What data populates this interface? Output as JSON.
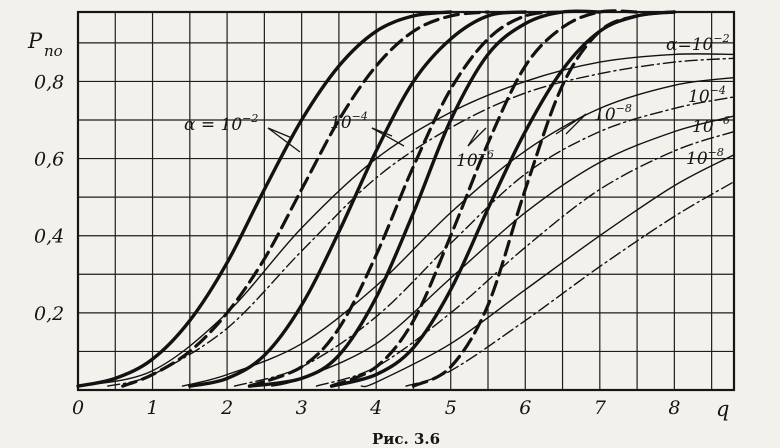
{
  "chart_data": {
    "type": "line",
    "title": "",
    "xlabel": "q",
    "ylabel": "P",
    "ylabel_sub": "по",
    "xlim": [
      0,
      8.8
    ],
    "ylim": [
      0,
      0.98
    ],
    "grid": true,
    "x_ticks": [
      0,
      1,
      2,
      3,
      4,
      5,
      6,
      7,
      8
    ],
    "x_tick_labels": [
      "0",
      "1",
      "2",
      "3",
      "4",
      "5",
      "6",
      "7",
      "8"
    ],
    "y_ticks": [
      0.2,
      0.4,
      0.6,
      0.8
    ],
    "y_tick_labels": [
      "0,2",
      "0,4",
      "0,6",
      "0,8"
    ],
    "caption": "Рис. 3.6",
    "annotations": [
      {
        "base": "α = 10",
        "exp": "−2"
      },
      {
        "base": "10",
        "exp": "−4"
      },
      {
        "base": "10",
        "exp": "−6"
      },
      {
        "base": "10",
        "exp": "−8"
      },
      {
        "base": "α=10",
        "exp": "−2"
      },
      {
        "base": "10",
        "exp": "−4"
      },
      {
        "base": "10",
        "exp": "−6"
      },
      {
        "base": "10",
        "exp": "−8"
      }
    ],
    "series": [
      {
        "style": "solid-thick",
        "x": [
          0,
          0.5,
          1,
          1.5,
          2,
          2.5,
          3,
          3.5,
          4,
          4.5,
          5
        ],
        "y": [
          0.01,
          0.03,
          0.08,
          0.18,
          0.33,
          0.52,
          0.7,
          0.84,
          0.93,
          0.97,
          0.98
        ]
      },
      {
        "style": "dashed-thick",
        "x": [
          0.6,
          1,
          1.5,
          2,
          2.5,
          3,
          3.5,
          4,
          4.5,
          5,
          5.5
        ],
        "y": [
          0.01,
          0.04,
          0.1,
          0.2,
          0.34,
          0.52,
          0.7,
          0.84,
          0.93,
          0.97,
          0.98
        ]
      },
      {
        "style": "solid-thick",
        "x": [
          1.5,
          2,
          2.5,
          3,
          3.5,
          4,
          4.5,
          5,
          5.5,
          6
        ],
        "y": [
          0.01,
          0.03,
          0.09,
          0.22,
          0.41,
          0.62,
          0.8,
          0.91,
          0.97,
          0.98
        ]
      },
      {
        "style": "dashed-thick",
        "x": [
          2.3,
          3,
          3.5,
          4,
          4.5,
          5,
          5.5,
          6,
          6.5
        ],
        "y": [
          0.01,
          0.06,
          0.16,
          0.35,
          0.58,
          0.78,
          0.91,
          0.97,
          0.98
        ]
      },
      {
        "style": "solid-thick",
        "x": [
          2.3,
          3,
          3.5,
          4,
          4.5,
          5,
          5.5,
          6,
          6.5,
          7
        ],
        "y": [
          0.01,
          0.03,
          0.09,
          0.24,
          0.46,
          0.7,
          0.87,
          0.95,
          0.98,
          0.98
        ]
      },
      {
        "style": "dashed-thick",
        "x": [
          3.4,
          4,
          4.5,
          5,
          5.5,
          6,
          6.5,
          7,
          7.5
        ],
        "y": [
          0.01,
          0.06,
          0.18,
          0.4,
          0.64,
          0.84,
          0.94,
          0.98,
          0.98
        ]
      },
      {
        "style": "solid-thick",
        "x": [
          3.4,
          4,
          4.5,
          5,
          5.5,
          6,
          6.5,
          7,
          7.5,
          8
        ],
        "y": [
          0.01,
          0.04,
          0.11,
          0.26,
          0.47,
          0.67,
          0.83,
          0.93,
          0.97,
          0.98
        ]
      },
      {
        "style": "dashed-thick",
        "x": [
          4.5,
          5,
          5.5,
          6,
          6.5,
          7,
          7.5,
          8
        ],
        "y": [
          0.01,
          0.06,
          0.22,
          0.52,
          0.79,
          0.93,
          0.97,
          0.98
        ]
      },
      {
        "style": "solid-thin",
        "x": [
          0,
          1,
          2,
          3,
          4,
          5,
          6,
          7,
          8,
          8.8
        ],
        "y": [
          0.01,
          0.05,
          0.2,
          0.42,
          0.6,
          0.72,
          0.8,
          0.85,
          0.87,
          0.87
        ]
      },
      {
        "style": "dashdot-thin",
        "x": [
          0.4,
          1,
          2,
          3,
          4,
          5,
          6,
          7,
          8,
          8.8
        ],
        "y": [
          0.01,
          0.04,
          0.16,
          0.36,
          0.55,
          0.68,
          0.77,
          0.82,
          0.85,
          0.86
        ]
      },
      {
        "style": "solid-thin",
        "x": [
          1.4,
          2,
          3,
          4,
          5,
          6,
          7,
          8,
          8.8
        ],
        "y": [
          0.01,
          0.04,
          0.12,
          0.27,
          0.46,
          0.62,
          0.73,
          0.79,
          0.81
        ]
      },
      {
        "style": "dashdot-thin",
        "x": [
          2.1,
          3,
          4,
          5,
          6,
          7,
          8,
          8.8
        ],
        "y": [
          0.01,
          0.06,
          0.19,
          0.38,
          0.56,
          0.67,
          0.73,
          0.76
        ]
      },
      {
        "style": "solid-thin",
        "x": [
          2.6,
          3,
          4,
          5,
          6,
          7,
          8,
          8.8
        ],
        "y": [
          0.01,
          0.03,
          0.12,
          0.29,
          0.46,
          0.59,
          0.67,
          0.71
        ]
      },
      {
        "style": "dashdot-thin",
        "x": [
          3.2,
          4,
          5,
          6,
          7,
          8,
          8.8
        ],
        "y": [
          0.01,
          0.06,
          0.2,
          0.37,
          0.52,
          0.62,
          0.67
        ]
      },
      {
        "style": "solid-thin",
        "x": [
          3.8,
          4,
          5,
          6,
          7,
          8,
          8.8
        ],
        "y": [
          0.01,
          0.02,
          0.12,
          0.26,
          0.4,
          0.53,
          0.61
        ]
      },
      {
        "style": "dashdot-thin",
        "x": [
          4.4,
          5,
          6,
          7,
          8,
          8.8
        ],
        "y": [
          0.01,
          0.05,
          0.18,
          0.32,
          0.45,
          0.54
        ]
      }
    ]
  }
}
